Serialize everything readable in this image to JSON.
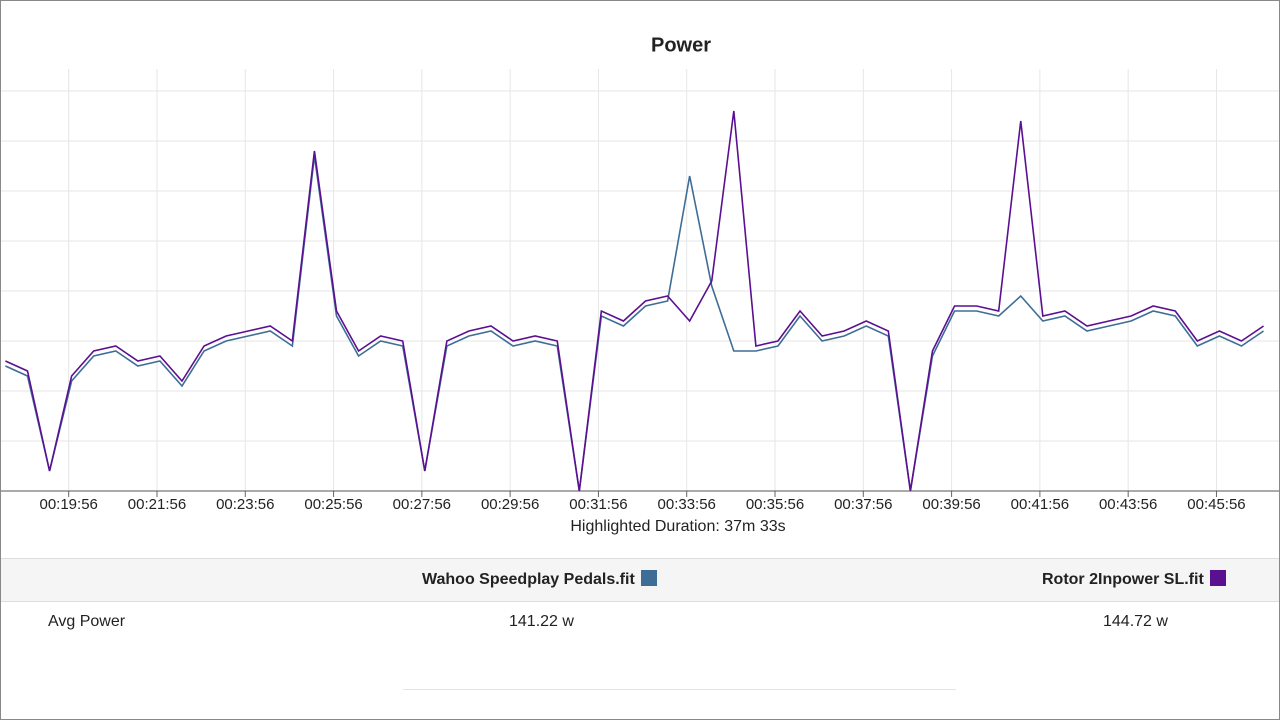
{
  "chart_data": {
    "type": "line",
    "title": "Power",
    "x": [
      1110,
      1140,
      1170,
      1200,
      1230,
      1260,
      1290,
      1320,
      1350,
      1380,
      1410,
      1440,
      1470,
      1500,
      1530,
      1560,
      1590,
      1620,
      1650,
      1680,
      1710,
      1740,
      1770,
      1800,
      1830,
      1860,
      1890,
      1920,
      1950,
      1980,
      2010,
      2040,
      2070,
      2100,
      2130,
      2160,
      2190,
      2220,
      2250,
      2280,
      2310,
      2340,
      2370,
      2400,
      2430,
      2460,
      2490,
      2520,
      2550,
      2580,
      2610,
      2640,
      2670,
      2700,
      2730,
      2760,
      2790,
      2820
    ],
    "series": [
      {
        "name": "Wahoo Speedplay Pedals.fit",
        "color": "#3e6d96",
        "values": [
          125,
          115,
          20,
          110,
          135,
          140,
          125,
          130,
          105,
          140,
          150,
          155,
          160,
          145,
          335,
          175,
          135,
          150,
          145,
          20,
          145,
          155,
          160,
          145,
          150,
          145,
          0,
          175,
          165,
          185,
          190,
          315,
          205,
          140,
          140,
          145,
          175,
          150,
          155,
          165,
          155,
          0,
          135,
          180,
          180,
          175,
          195,
          170,
          175,
          160,
          165,
          170,
          180,
          175,
          145,
          155,
          145,
          160
        ]
      },
      {
        "name": "Rotor 2Inpower SL.fit",
        "color": "#5b0f91",
        "values": [
          130,
          120,
          20,
          115,
          140,
          145,
          130,
          135,
          110,
          145,
          155,
          160,
          165,
          150,
          340,
          180,
          140,
          155,
          150,
          20,
          150,
          160,
          165,
          150,
          155,
          150,
          0,
          180,
          170,
          190,
          195,
          170,
          210,
          380,
          145,
          150,
          180,
          155,
          160,
          170,
          160,
          0,
          140,
          185,
          185,
          180,
          370,
          175,
          180,
          165,
          170,
          175,
          185,
          180,
          150,
          160,
          150,
          165
        ]
      }
    ],
    "xlim": [
      1104,
      2841
    ],
    "ylim": [
      0,
      422
    ],
    "xticks": [
      {
        "value": 1196,
        "label": "00:19:56"
      },
      {
        "value": 1316,
        "label": "00:21:56"
      },
      {
        "value": 1436,
        "label": "00:23:56"
      },
      {
        "value": 1556,
        "label": "00:25:56"
      },
      {
        "value": 1676,
        "label": "00:27:56"
      },
      {
        "value": 1796,
        "label": "00:29:56"
      },
      {
        "value": 1916,
        "label": "00:31:56"
      },
      {
        "value": 2036,
        "label": "00:33:56"
      },
      {
        "value": 2156,
        "label": "00:35:56"
      },
      {
        "value": 2276,
        "label": "00:37:56"
      },
      {
        "value": 2396,
        "label": "00:39:56"
      },
      {
        "value": 2516,
        "label": "00:41:56"
      },
      {
        "value": 2636,
        "label": "00:43:56"
      },
      {
        "value": 2756,
        "label": "00:45:56"
      }
    ],
    "yticks": [
      50,
      100,
      150,
      200,
      250,
      300,
      350,
      400
    ],
    "grid": true,
    "xlabel": "Highlighted Duration: 37m 33s"
  },
  "table": {
    "columns": [
      "Wahoo Speedplay Pedals.fit",
      "Rotor 2Inpower SL.fit"
    ],
    "rows": [
      {
        "label": "Avg Power",
        "values": [
          "141.22 w",
          "144.72 w"
        ]
      }
    ]
  }
}
